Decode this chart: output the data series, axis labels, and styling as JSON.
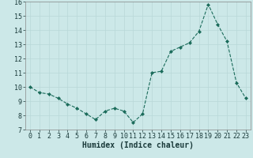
{
  "x": [
    0,
    1,
    2,
    3,
    4,
    5,
    6,
    7,
    8,
    9,
    10,
    11,
    12,
    13,
    14,
    15,
    16,
    17,
    18,
    19,
    20,
    21,
    22,
    23
  ],
  "y": [
    10.0,
    9.6,
    9.5,
    9.2,
    8.8,
    8.5,
    8.1,
    7.7,
    8.3,
    8.5,
    8.3,
    7.5,
    8.1,
    11.0,
    11.1,
    12.5,
    12.8,
    13.1,
    13.9,
    15.8,
    14.4,
    13.2,
    10.3,
    9.2
  ],
  "xlim": [
    -0.5,
    23.5
  ],
  "ylim": [
    7,
    16
  ],
  "yticks": [
    7,
    8,
    9,
    10,
    11,
    12,
    13,
    14,
    15,
    16
  ],
  "xticks": [
    0,
    1,
    2,
    3,
    4,
    5,
    6,
    7,
    8,
    9,
    10,
    11,
    12,
    13,
    14,
    15,
    16,
    17,
    18,
    19,
    20,
    21,
    22,
    23
  ],
  "xlabel": "Humidex (Indice chaleur)",
  "line_color": "#1a6b5a",
  "marker": "D",
  "marker_size": 2.0,
  "background_color": "#cce8e8",
  "grid_color": "#b8d8d8",
  "xlabel_fontsize": 7,
  "tick_fontsize": 6
}
